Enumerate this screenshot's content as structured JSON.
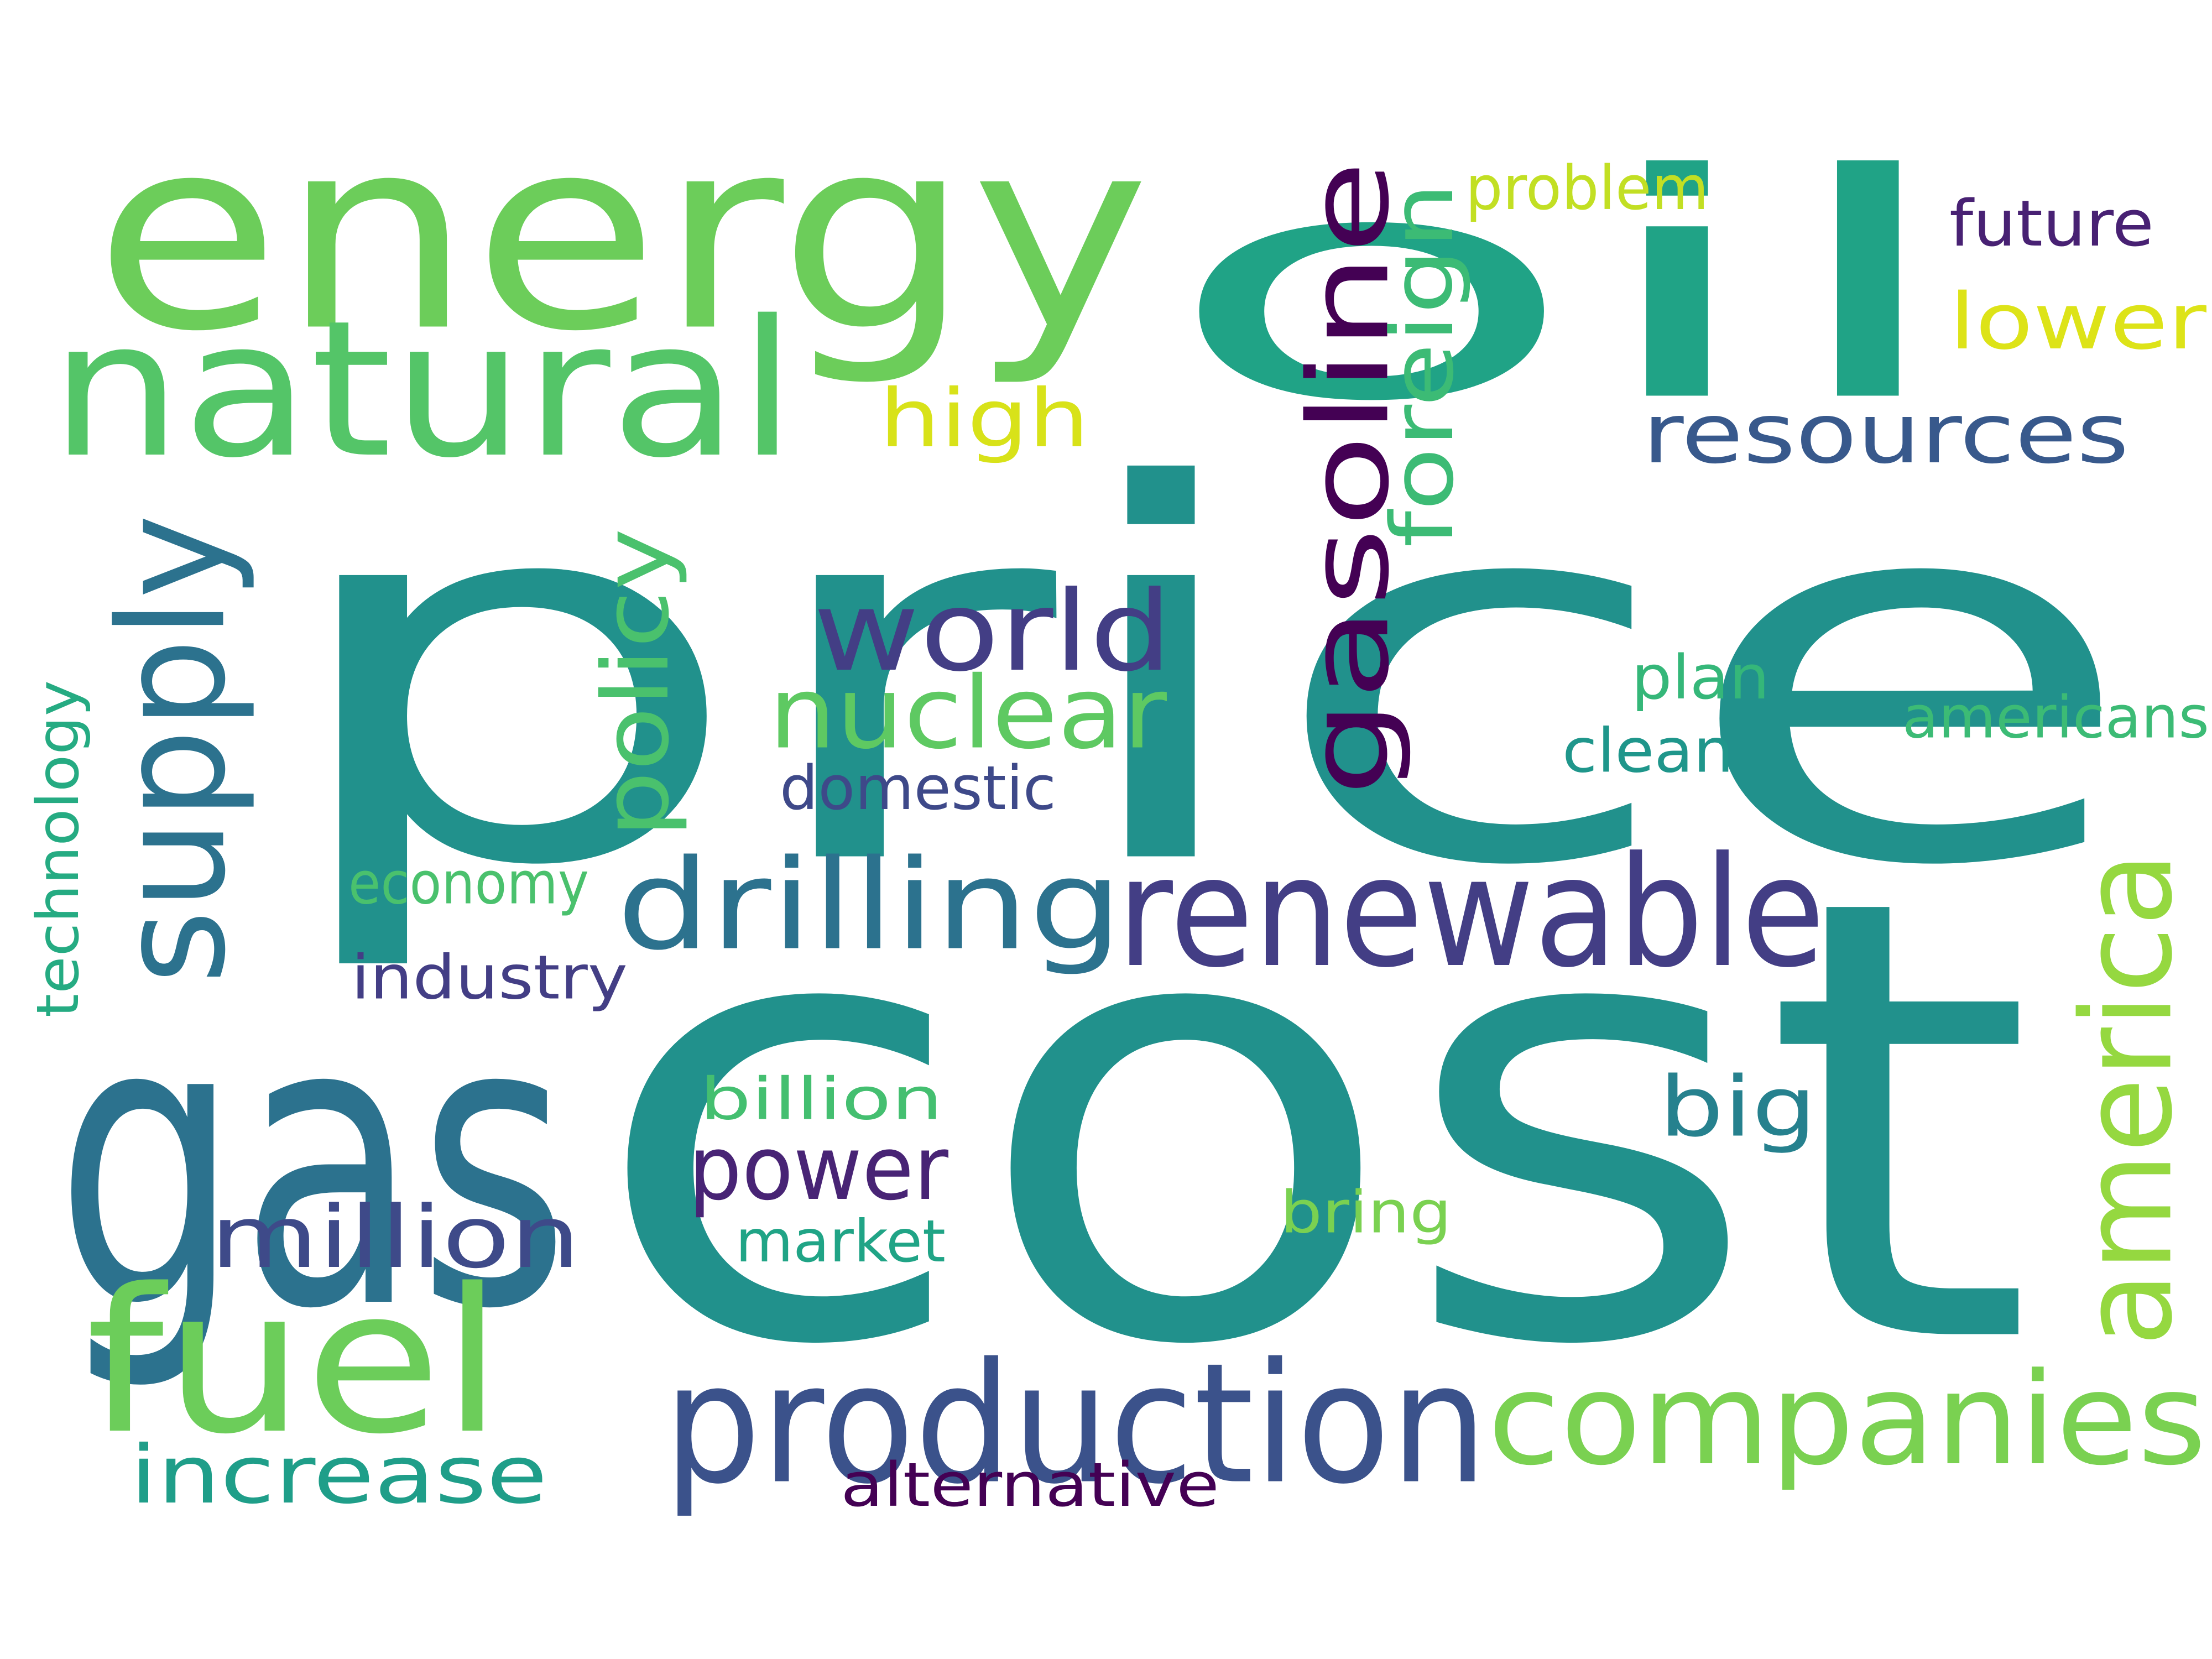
{
  "words": [
    {
      "text": "price",
      "color": "#21918c",
      "orientation": "horizontal"
    },
    {
      "text": "cost",
      "color": "#21918c",
      "orientation": "horizontal"
    },
    {
      "text": "energy",
      "color": "#6ccd5a",
      "orientation": "horizontal"
    },
    {
      "text": "oil",
      "color": "#20a386",
      "orientation": "horizontal"
    },
    {
      "text": "gas",
      "color": "#2c728e",
      "orientation": "horizontal"
    },
    {
      "text": "natural",
      "color": "#54c568",
      "orientation": "horizontal"
    },
    {
      "text": "fuel",
      "color": "#6ccd5a",
      "orientation": "horizontal"
    },
    {
      "text": "production",
      "color": "#3b528b",
      "orientation": "horizontal"
    },
    {
      "text": "companies",
      "color": "#7ad151",
      "orientation": "horizontal"
    },
    {
      "text": "renewable",
      "color": "#433e85",
      "orientation": "horizontal"
    },
    {
      "text": "drilling",
      "color": "#2c728e",
      "orientation": "horizontal"
    },
    {
      "text": "world",
      "color": "#433e85",
      "orientation": "horizontal"
    },
    {
      "text": "nuclear",
      "color": "#5ec962",
      "orientation": "horizontal"
    },
    {
      "text": "supply",
      "color": "#2c728e",
      "orientation": "vertical"
    },
    {
      "text": "gasoline",
      "color": "#440154",
      "orientation": "vertical"
    },
    {
      "text": "america",
      "color": "#95d840",
      "orientation": "vertical"
    },
    {
      "text": "foreign",
      "color": "#3cbb75",
      "orientation": "vertical"
    },
    {
      "text": "policy",
      "color": "#4ac16d",
      "orientation": "vertical"
    },
    {
      "text": "technology",
      "color": "#25ab82",
      "orientation": "vertical"
    },
    {
      "text": "resources",
      "color": "#38598c",
      "orientation": "horizontal"
    },
    {
      "text": "high",
      "color": "#d8e219",
      "orientation": "horizontal"
    },
    {
      "text": "lower",
      "color": "#dde318",
      "orientation": "horizontal"
    },
    {
      "text": "problem",
      "color": "#c2df23",
      "orientation": "horizontal"
    },
    {
      "text": "future",
      "color": "#482173",
      "orientation": "horizontal"
    },
    {
      "text": "power",
      "color": "#482475",
      "orientation": "horizontal"
    },
    {
      "text": "million",
      "color": "#3e4a89",
      "orientation": "horizontal"
    },
    {
      "text": "increase",
      "color": "#1f9e89",
      "orientation": "horizontal"
    },
    {
      "text": "big",
      "color": "#26818e",
      "orientation": "horizontal"
    },
    {
      "text": "plan",
      "color": "#35b779",
      "orientation": "horizontal"
    },
    {
      "text": "clean",
      "color": "#1f968b",
      "orientation": "horizontal"
    },
    {
      "text": "americans",
      "color": "#3cbb75",
      "orientation": "horizontal"
    },
    {
      "text": "domestic",
      "color": "#3e4989",
      "orientation": "horizontal"
    },
    {
      "text": "economy",
      "color": "#4ac16d",
      "orientation": "horizontal"
    },
    {
      "text": "industry",
      "color": "#433e85",
      "orientation": "horizontal"
    },
    {
      "text": "billion",
      "color": "#44bf70",
      "orientation": "horizontal"
    },
    {
      "text": "market",
      "color": "#20a486",
      "orientation": "horizontal"
    },
    {
      "text": "bring",
      "color": "#7ad151",
      "orientation": "horizontal"
    },
    {
      "text": "alternative",
      "color": "#440154",
      "orientation": "horizontal"
    }
  ]
}
